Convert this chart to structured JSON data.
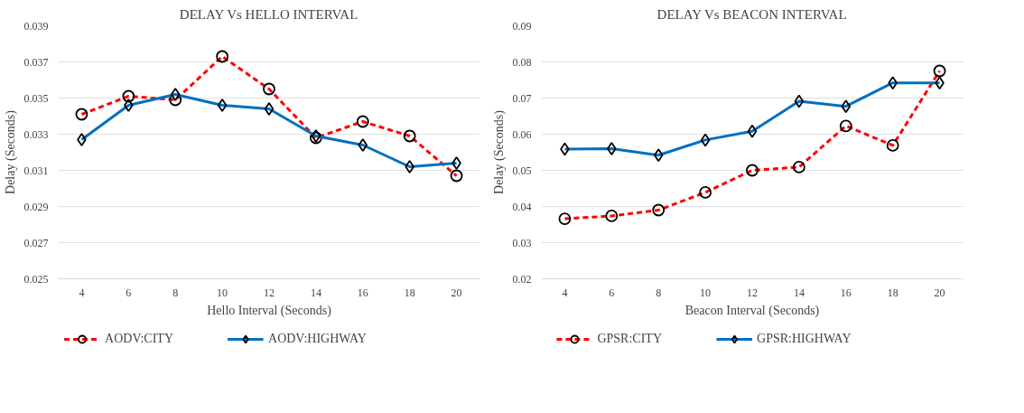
{
  "chart_data": [
    {
      "type": "line",
      "title": "DELAY Vs HELLO INTERVAL",
      "xlabel": "Hello Interval (Seconds)",
      "ylabel": "Delay (Seconds)",
      "categories": [
        "4",
        "6",
        "8",
        "10",
        "12",
        "14",
        "16",
        "18",
        "20"
      ],
      "ylim": [
        0.025,
        0.039
      ],
      "yticks": [
        0.025,
        0.027,
        0.029,
        0.031,
        0.033,
        0.035,
        0.037,
        0.039
      ],
      "grid": "y",
      "legend": "bottom",
      "series": [
        {
          "name": "AODV:CITY",
          "color": "#ff0000",
          "marker": "circle",
          "line_style": "dashed",
          "values": [
            0.0341,
            0.0351,
            0.0349,
            0.0373,
            0.0355,
            0.0328,
            0.0337,
            0.0329,
            0.0307
          ]
        },
        {
          "name": "AODV:HIGHWAY",
          "color": "#0070c0",
          "marker": "diamond",
          "line_style": "solid",
          "values": [
            0.0327,
            0.0346,
            0.0352,
            0.0346,
            0.0344,
            0.0329,
            0.0324,
            0.0312,
            0.0314
          ]
        }
      ]
    },
    {
      "type": "line",
      "title": "DELAY Vs BEACON INTERVAL",
      "xlabel": "Beacon Interval (Seconds)",
      "ylabel": "Delay (Seconds)",
      "categories": [
        "4",
        "6",
        "8",
        "10",
        "12",
        "14",
        "16",
        "18",
        "20"
      ],
      "ylim": [
        0.02,
        0.09
      ],
      "yticks": [
        0.02,
        0.03,
        0.04,
        0.05,
        0.06,
        0.07,
        0.08,
        0.09
      ],
      "grid": "y",
      "legend": "bottom",
      "series": [
        {
          "name": "GPSR:CITY",
          "color": "#ff0000",
          "marker": "circle",
          "line_style": "dashed",
          "values": [
            0.0366,
            0.0374,
            0.039,
            0.0439,
            0.05,
            0.0509,
            0.0623,
            0.0569,
            0.0775
          ]
        },
        {
          "name": "GPSR:HIGHWAY",
          "color": "#0070c0",
          "marker": "diamond",
          "line_style": "solid",
          "values": [
            0.0559,
            0.056,
            0.0542,
            0.0584,
            0.0608,
            0.0691,
            0.0677,
            0.0742,
            0.0742
          ]
        }
      ]
    }
  ]
}
